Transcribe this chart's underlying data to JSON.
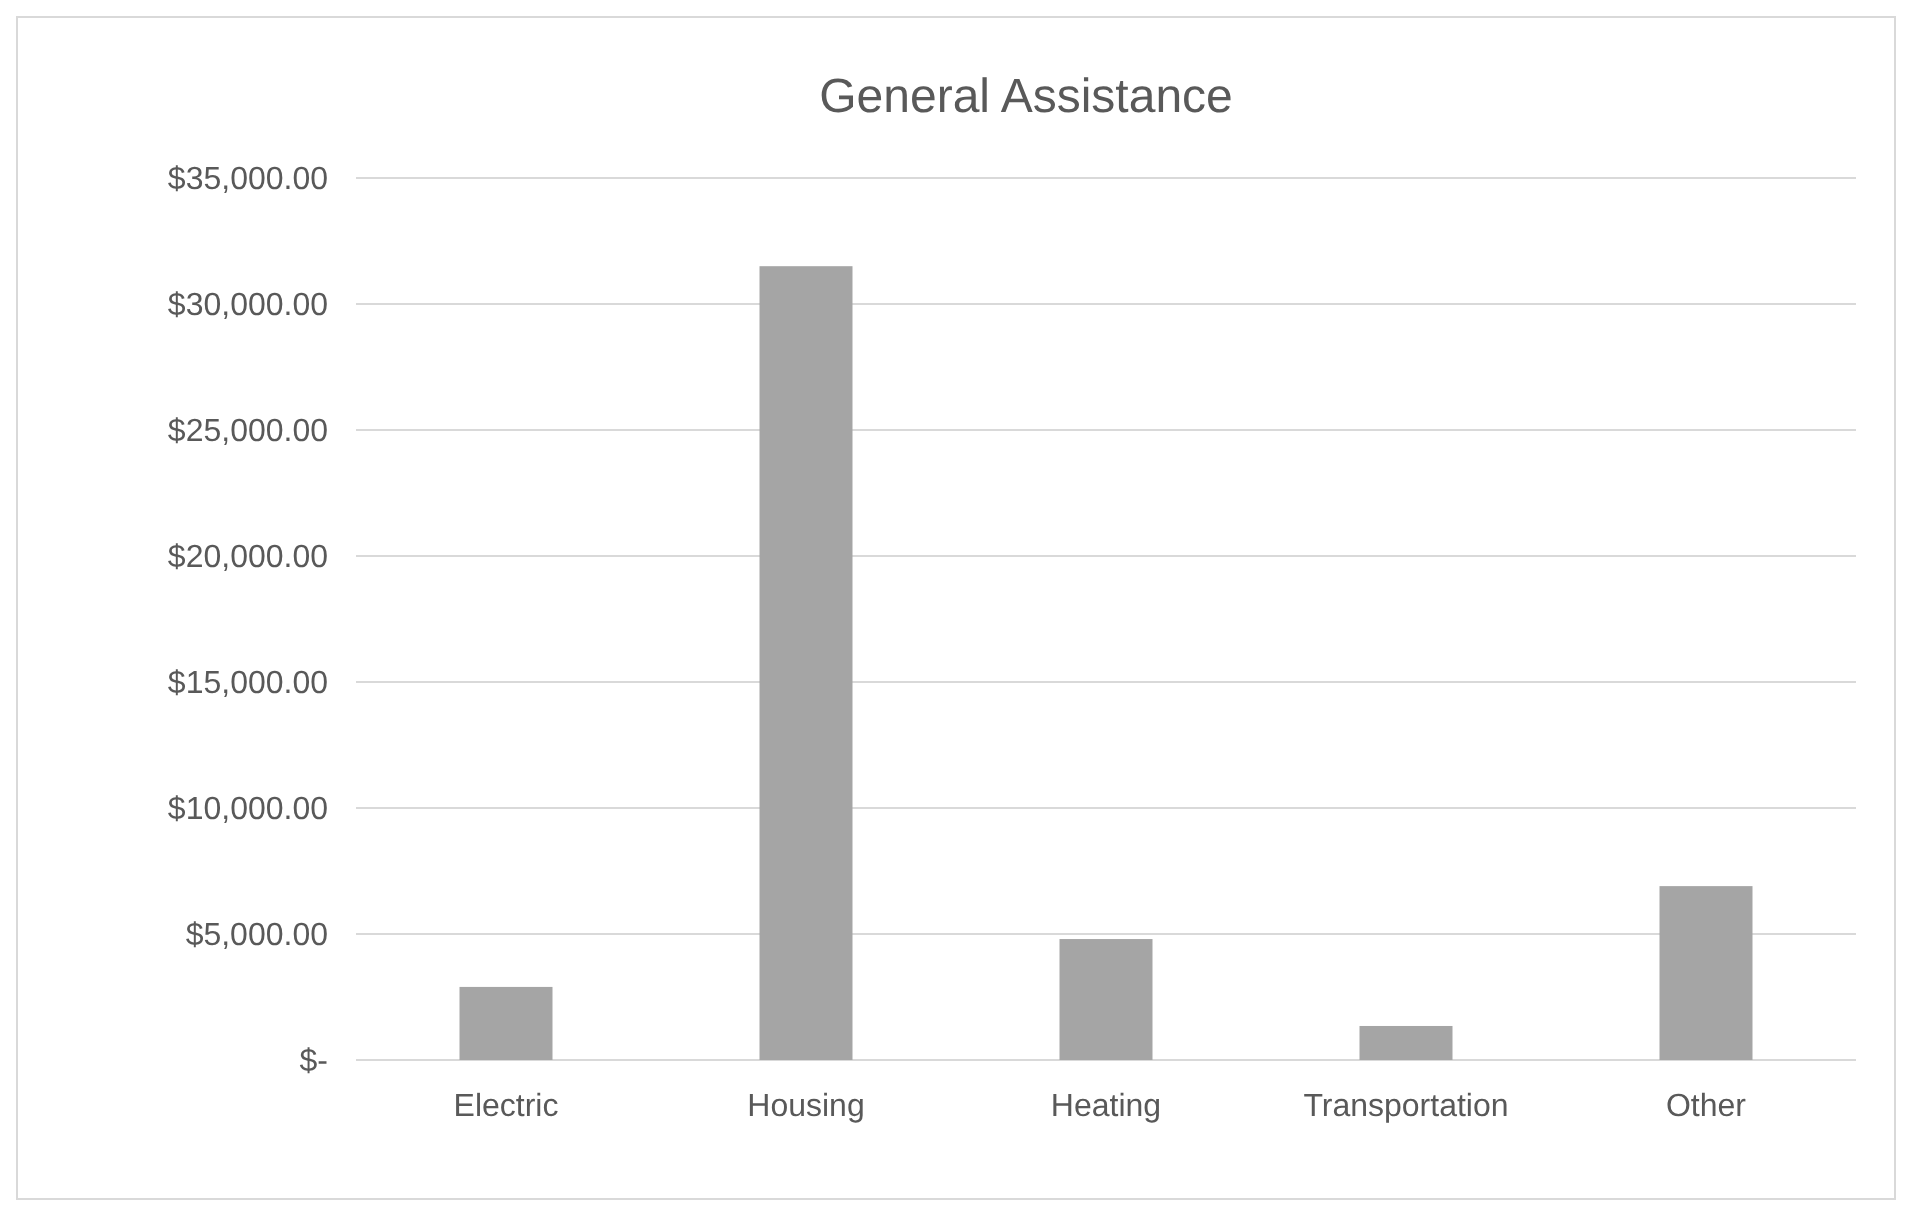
{
  "chart_data": {
    "type": "bar",
    "title": "General Assistance",
    "categories": [
      "Electric",
      "Housing",
      "Heating",
      "Transportation",
      "Other"
    ],
    "values": [
      2900,
      31500,
      4800,
      1350,
      6900
    ],
    "color": "#a5a5a5",
    "ylim": [
      0,
      35000
    ],
    "yticks": [
      {
        "value": 0,
        "label": "$-"
      },
      {
        "value": 5000,
        "label": "$5,000.00"
      },
      {
        "value": 10000,
        "label": "$10,000.00"
      },
      {
        "value": 15000,
        "label": "$15,000.00"
      },
      {
        "value": 20000,
        "label": "$20,000.00"
      },
      {
        "value": 25000,
        "label": "$25,000.00"
      },
      {
        "value": 30000,
        "label": "$30,000.00"
      },
      {
        "value": 35000,
        "label": "$35,000.00"
      }
    ],
    "grid": "y"
  }
}
